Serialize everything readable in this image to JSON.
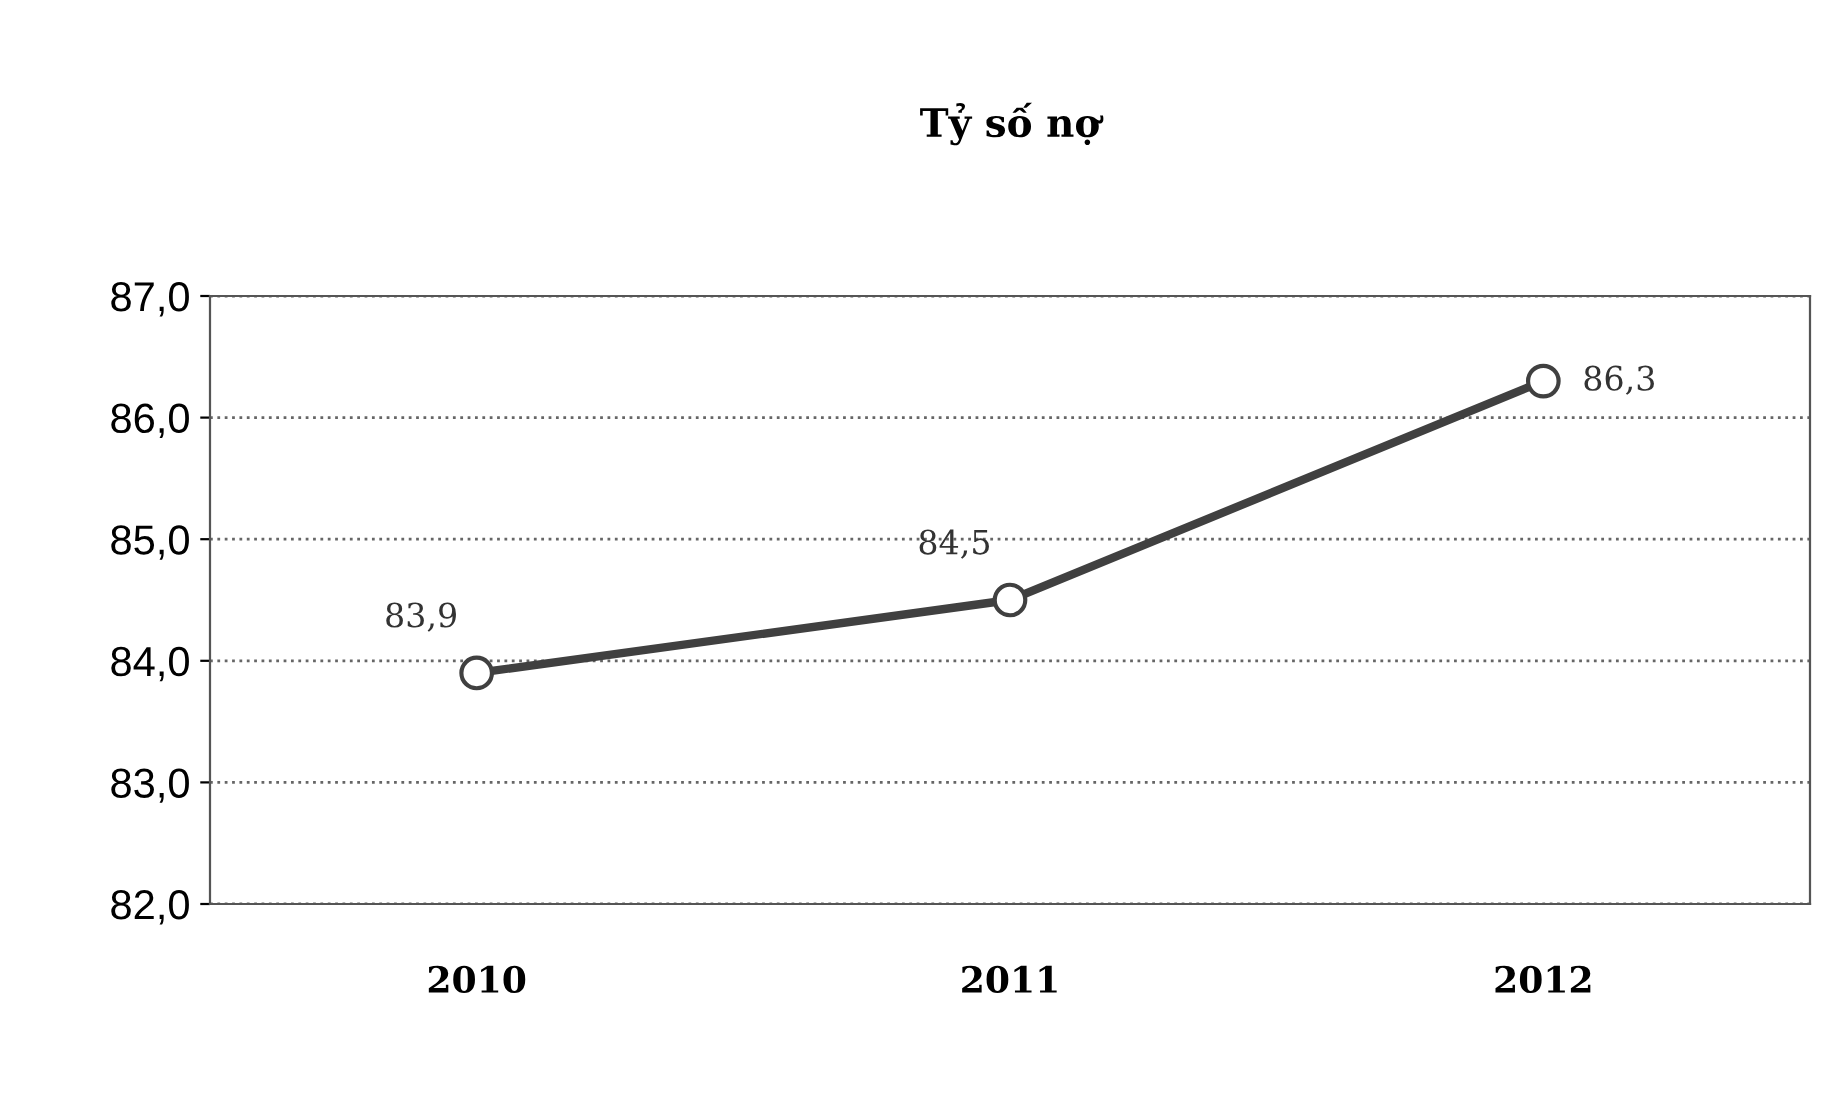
{
  "chart_data": {
    "type": "line",
    "title": "Tỷ số nợ",
    "categories": [
      "2010",
      "2011",
      "2012"
    ],
    "series": [
      {
        "color": "#404040",
        "values": [
          83.9,
          84.5,
          86.3
        ],
        "value_labels": [
          "83,9",
          "84,5",
          "86,3"
        ]
      }
    ],
    "ylim": [
      82,
      87
    ],
    "yticks": [
      {
        "value": 82,
        "label": "82,0"
      },
      {
        "value": 83,
        "label": "83,0"
      },
      {
        "value": 84,
        "label": "84,0"
      },
      {
        "value": 85,
        "label": "85,0"
      },
      {
        "value": 86,
        "label": "86,0"
      },
      {
        "value": 87,
        "label": "87,0"
      }
    ],
    "grid": "y",
    "marker": "circle",
    "line_style": "solid",
    "legend": false
  }
}
